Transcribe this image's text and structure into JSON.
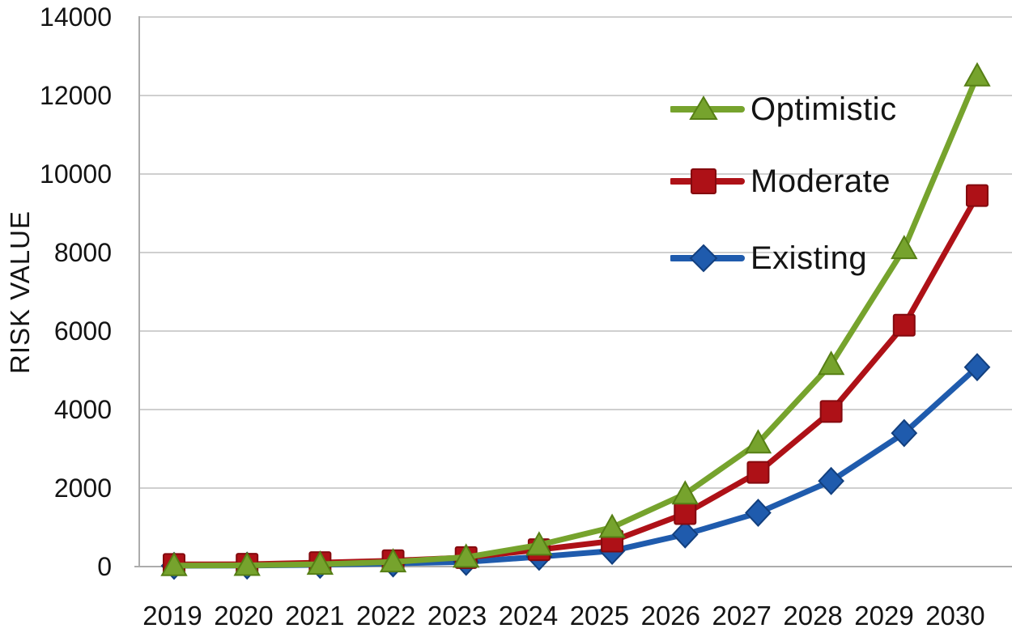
{
  "chart_data": {
    "type": "line",
    "title": "",
    "xlabel": "",
    "ylabel": "RISK VALUE",
    "categories": [
      "2019",
      "2020",
      "2021",
      "2022",
      "2023",
      "2024",
      "2025",
      "2026",
      "2027",
      "2028",
      "2029",
      "2030"
    ],
    "y_ticks": [
      0,
      2000,
      4000,
      6000,
      8000,
      10000,
      12000,
      14000
    ],
    "ylim": [
      0,
      14000
    ],
    "grid": "horizontal",
    "legend": {
      "position": "inside-top-right",
      "items": [
        "Optimistic",
        "Moderate",
        "Existing"
      ]
    },
    "series": [
      {
        "name": "Existing",
        "marker": "diamond",
        "color": "#1F5BAD",
        "marker_edge": "#123F7E",
        "values": [
          20,
          25,
          45,
          80,
          120,
          250,
          400,
          820,
          1370,
          2180,
          3400,
          5080
        ]
      },
      {
        "name": "Moderate",
        "marker": "square",
        "color": "#AE1117",
        "marker_edge": "#84090E",
        "values": [
          55,
          60,
          100,
          150,
          230,
          430,
          650,
          1350,
          2400,
          3950,
          6150,
          9450
        ]
      },
      {
        "name": "Optimistic",
        "marker": "triangle",
        "color": "#76A32D",
        "marker_edge": "#567F15",
        "values": [
          25,
          30,
          60,
          120,
          240,
          550,
          1000,
          1850,
          3150,
          5150,
          8100,
          12500
        ]
      }
    ],
    "series_draw_order": [
      "Existing",
      "Moderate",
      "Optimistic"
    ]
  },
  "style": {
    "gridline_color": "#CFCFCF",
    "axis_color": "#ACACAC",
    "text_color": "#141414",
    "background": "#FFFFFF"
  }
}
